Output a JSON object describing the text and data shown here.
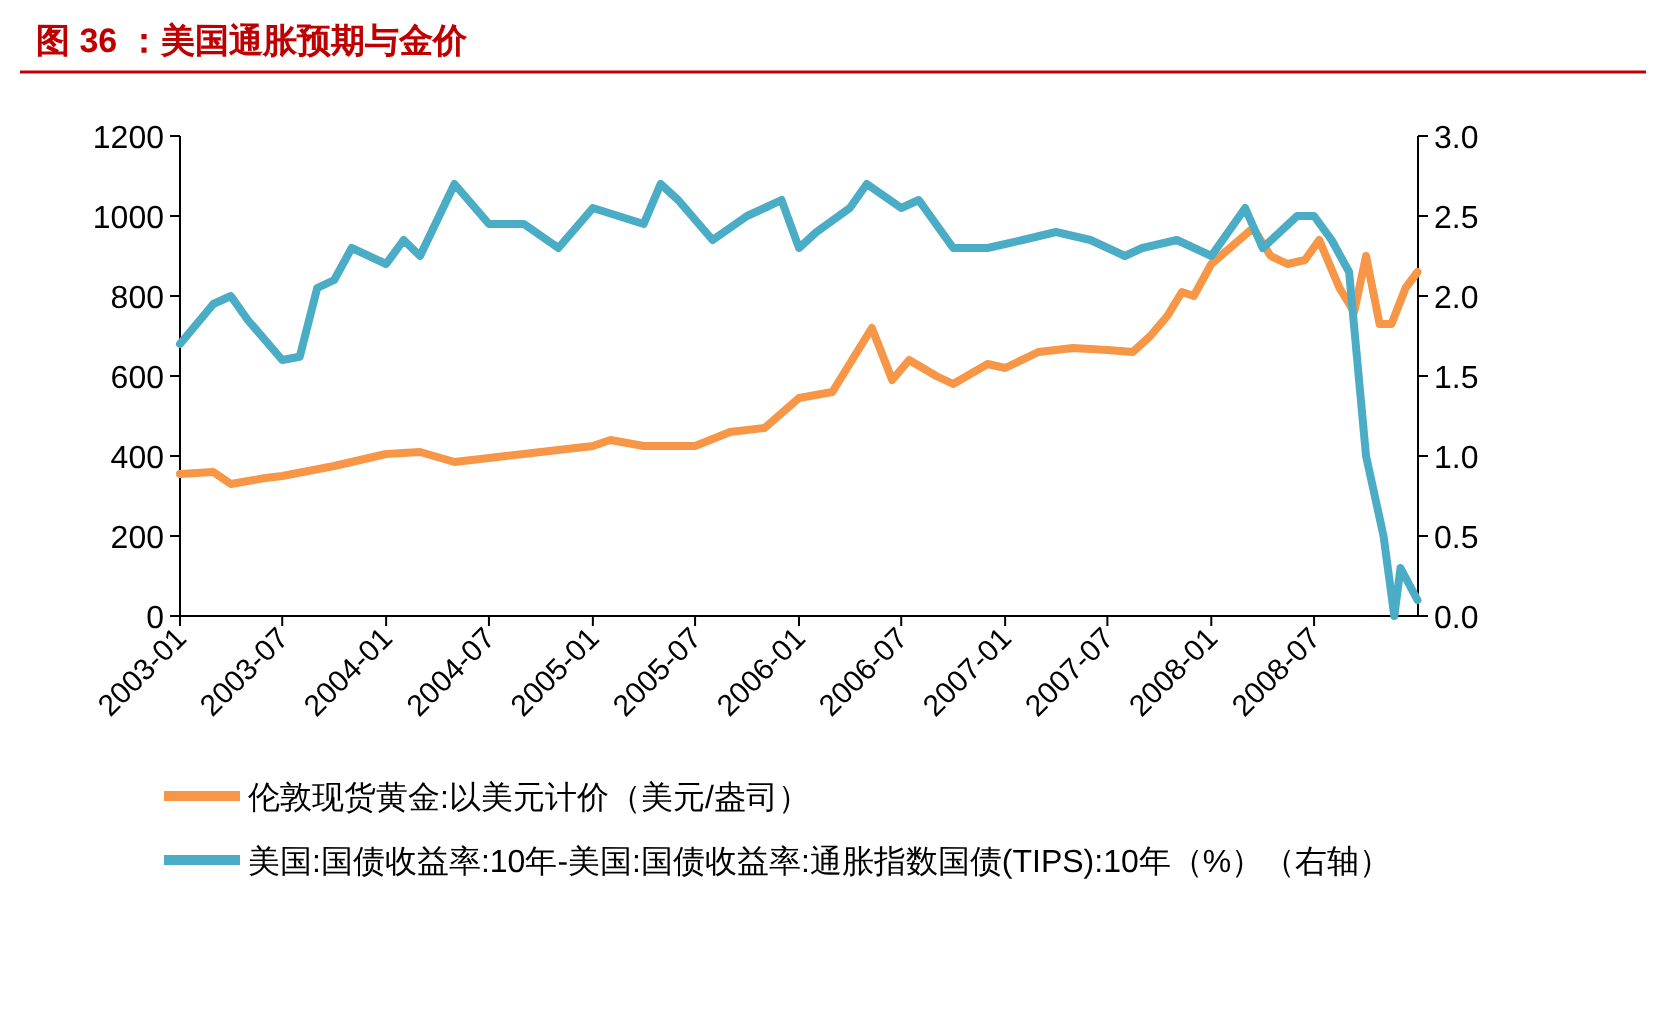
{
  "chart_data": {
    "type": "line",
    "title": "图 36 ：美国通胀预期与金价",
    "xlim": [
      "2003-01-01",
      "2009-01-01"
    ],
    "xticks": [
      {
        "value": "2003-01-01",
        "label": "2003-01"
      },
      {
        "value": "2003-07-01",
        "label": "2003-07"
      },
      {
        "value": "2004-01-01",
        "label": "2004-01"
      },
      {
        "value": "2004-07-01",
        "label": "2004-07"
      },
      {
        "value": "2005-01-01",
        "label": "2005-01"
      },
      {
        "value": "2005-07-01",
        "label": "2005-07"
      },
      {
        "value": "2006-01-01",
        "label": "2006-01"
      },
      {
        "value": "2006-07-01",
        "label": "2006-07"
      },
      {
        "value": "2007-01-01",
        "label": "2007-01"
      },
      {
        "value": "2007-07-01",
        "label": "2007-07"
      },
      {
        "value": "2008-01-01",
        "label": "2008-01"
      },
      {
        "value": "2008-07-01",
        "label": "2008-07"
      }
    ],
    "ylim": [
      0,
      1200
    ],
    "yticks": [
      0,
      200,
      400,
      600,
      800,
      1000,
      1200
    ],
    "y2lim": [
      0,
      3
    ],
    "y2ticks": [
      {
        "value": 0,
        "label": "0.0"
      },
      {
        "value": 0.5,
        "label": "0.5"
      },
      {
        "value": 1,
        "label": "1.0"
      },
      {
        "value": 1.5,
        "label": "1.5"
      },
      {
        "value": 2,
        "label": "2.0"
      },
      {
        "value": 2.5,
        "label": "2.5"
      },
      {
        "value": 3,
        "label": "3.0"
      }
    ],
    "legend": "bottom",
    "grid": false,
    "series": [
      {
        "name": "伦敦现货黄金:以美元计价（美元/盎司）",
        "color": "#f79646",
        "x": [
          "2003-01-01",
          "2003-03-01",
          "2003-04-01",
          "2003-06-01",
          "2003-07-01",
          "2003-10-01",
          "2004-01-01",
          "2004-03-01",
          "2004-05-01",
          "2004-07-01",
          "2004-10-01",
          "2005-01-01",
          "2005-02-01",
          "2005-04-01",
          "2005-07-01",
          "2005-09-01",
          "2005-11-01",
          "2006-01-01",
          "2006-03-01",
          "2006-05-10",
          "2006-06-15",
          "2006-07-15",
          "2006-09-01",
          "2006-10-01",
          "2006-12-01",
          "2007-01-01",
          "2007-03-01",
          "2007-05-01",
          "2007-07-01",
          "2007-08-15",
          "2007-09-15",
          "2007-10-15",
          "2007-11-10",
          "2007-12-01",
          "2008-01-01",
          "2008-03-15",
          "2008-04-15",
          "2008-05-15",
          "2008-06-15",
          "2008-07-10",
          "2008-08-15",
          "2008-09-10",
          "2008-10-01",
          "2008-10-25",
          "2008-11-15",
          "2008-12-10",
          "2008-12-31"
        ],
        "values": [
          355,
          360,
          330,
          345,
          350,
          375,
          405,
          410,
          385,
          395,
          410,
          425,
          440,
          425,
          425,
          460,
          470,
          545,
          560,
          720,
          590,
          640,
          600,
          580,
          630,
          620,
          660,
          670,
          665,
          660,
          700,
          750,
          810,
          800,
          880,
          970,
          900,
          880,
          890,
          940,
          820,
          760,
          900,
          730,
          730,
          820,
          860
        ]
      },
      {
        "name": "美国:国债收益率:10年-美国:国债收益率:通胀指数国债(TIPS):10年（%）（右轴）",
        "color": "#4bacc6",
        "axis": "y2",
        "x": [
          "2003-01-01",
          "2003-03-01",
          "2003-04-01",
          "2003-05-01",
          "2003-07-01",
          "2003-08-01",
          "2003-09-01",
          "2003-10-01",
          "2003-11-01",
          "2004-01-01",
          "2004-02-01",
          "2004-03-01",
          "2004-05-01",
          "2004-07-01",
          "2004-09-01",
          "2004-11-01",
          "2005-01-01",
          "2005-04-01",
          "2005-05-01",
          "2005-06-01",
          "2005-08-01",
          "2005-10-01",
          "2005-11-01",
          "2005-12-01",
          "2006-01-01",
          "2006-02-01",
          "2006-04-01",
          "2006-05-01",
          "2006-07-01",
          "2006-08-01",
          "2006-10-01",
          "2006-12-01",
          "2007-02-01",
          "2007-04-01",
          "2007-06-01",
          "2007-08-01",
          "2007-09-01",
          "2007-11-01",
          "2008-01-01",
          "2008-03-01",
          "2008-04-01",
          "2008-06-01",
          "2008-07-01",
          "2008-08-01",
          "2008-09-01",
          "2008-10-01",
          "2008-11-01",
          "2008-11-20",
          "2008-12-01",
          "2008-12-31"
        ],
        "values": [
          1.7,
          1.95,
          2.0,
          1.85,
          1.6,
          1.62,
          2.05,
          2.1,
          2.3,
          2.2,
          2.35,
          2.25,
          2.7,
          2.45,
          2.45,
          2.3,
          2.55,
          2.45,
          2.7,
          2.6,
          2.35,
          2.5,
          2.55,
          2.6,
          2.3,
          2.4,
          2.55,
          2.7,
          2.55,
          2.6,
          2.3,
          2.3,
          2.35,
          2.4,
          2.35,
          2.25,
          2.3,
          2.35,
          2.25,
          2.55,
          2.3,
          2.5,
          2.5,
          2.35,
          2.15,
          1.0,
          0.5,
          0.0,
          0.3,
          0.1
        ]
      }
    ]
  }
}
